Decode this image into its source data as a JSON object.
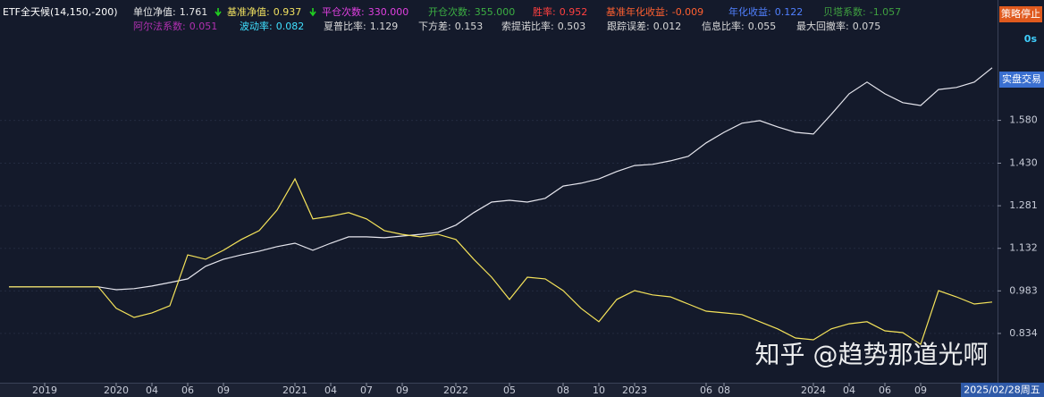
{
  "header": {
    "title": "ETF全天候(14,150,-200)",
    "stats": [
      {
        "label": "单位净值:",
        "value": "1.761",
        "color": "#e8e8e8"
      },
      {
        "label": "基准净值:",
        "value": "0.937",
        "color": "#f0e060"
      },
      {
        "label": "平仓次数:",
        "value": "330.000",
        "color": "#e040e0"
      },
      {
        "label": "开仓次数:",
        "value": "355.000",
        "color": "#3cb043"
      },
      {
        "label": "胜率:",
        "value": "0.952",
        "color": "#ff4040"
      },
      {
        "label": "基准年化收益:",
        "value": "-0.009",
        "color": "#ff6030"
      },
      {
        "label": "年化收益:",
        "value": "0.122",
        "color": "#5080ff"
      },
      {
        "label": "贝塔系数:",
        "value": "-1.057",
        "color": "#3fa040"
      },
      {
        "label": "阿尔法系数:",
        "value": "0.051",
        "color": "#b030b0"
      },
      {
        "label": "波动率:",
        "value": "0.082",
        "color": "#40e0ff"
      },
      {
        "label": "夏普比率:",
        "value": "1.129",
        "color": "#d8d8d8"
      },
      {
        "label": "下方差:",
        "value": "0.153",
        "color": "#d8d8d8"
      },
      {
        "label": "索提诺比率:",
        "value": "0.503",
        "color": "#d8d8d8"
      },
      {
        "label": "跟踪误差:",
        "value": "0.012",
        "color": "#d8d8d8"
      },
      {
        "label": "信息比率:",
        "value": "0.055",
        "color": "#d8d8d8"
      },
      {
        "label": "最大回撤率:",
        "value": "0.075",
        "color": "#d8d8d8"
      }
    ],
    "stop_button": "策略停止",
    "timer": "0s",
    "live_button": "实盘交易"
  },
  "watermark": "知乎 @趋势那道光啊",
  "chart_data": {
    "type": "line",
    "categories": [
      null,
      null,
      "2019",
      null,
      null,
      null,
      "2020",
      null,
      "04",
      null,
      "06",
      null,
      "09",
      null,
      null,
      null,
      "2021",
      null,
      "04",
      null,
      "07",
      null,
      "09",
      null,
      null,
      "2022",
      null,
      null,
      "05",
      null,
      null,
      "08",
      null,
      "10",
      null,
      "2023",
      null,
      null,
      null,
      "06",
      "08",
      null,
      null,
      null,
      null,
      "2024",
      null,
      "04",
      null,
      "06",
      null,
      "09",
      null,
      null,
      null,
      null
    ],
    "series": [
      {
        "color": "#e6e6ee",
        "values": [
          0.997,
          0.997,
          0.997,
          0.997,
          0.997,
          0.997,
          0.987,
          0.991,
          1.0,
          1.012,
          1.025,
          1.069,
          1.094,
          1.109,
          1.122,
          1.138,
          1.15,
          1.125,
          1.15,
          1.172,
          1.172,
          1.169,
          1.175,
          1.181,
          1.188,
          1.213,
          1.257,
          1.294,
          1.3,
          1.294,
          1.307,
          1.35,
          1.36,
          1.375,
          1.401,
          1.422,
          1.426,
          1.438,
          1.454,
          1.501,
          1.538,
          1.57,
          1.579,
          1.557,
          1.538,
          1.532,
          1.601,
          1.673,
          1.714,
          1.673,
          1.642,
          1.632,
          1.688,
          1.695,
          1.714,
          1.764
        ]
      },
      {
        "color": "#f5e35a",
        "values": [
          0.997,
          0.997,
          0.997,
          0.997,
          0.997,
          0.997,
          0.922,
          0.89,
          0.906,
          0.931,
          1.109,
          1.094,
          1.125,
          1.163,
          1.194,
          1.266,
          1.375,
          1.235,
          1.244,
          1.257,
          1.235,
          1.194,
          1.181,
          1.172,
          1.181,
          1.163,
          1.094,
          1.031,
          0.953,
          1.031,
          1.025,
          0.984,
          0.922,
          0.875,
          0.953,
          0.984,
          0.969,
          0.962,
          0.937,
          0.912,
          0.906,
          0.9,
          0.875,
          0.85,
          0.818,
          0.812,
          0.85,
          0.868,
          0.875,
          0.843,
          0.837,
          0.796,
          0.984,
          0.962,
          0.937,
          0.944
        ]
      }
    ],
    "ylim": [
      0.671,
      1.876
    ],
    "yticks": [
      0.834,
      0.983,
      1.132,
      1.281,
      {
        "value": 1.43,
        "label": "1.430"
      },
      {
        "value": 1.58,
        "label": "1.580"
      }
    ],
    "grid": true,
    "cursor_label": "2025/02/28周五"
  }
}
